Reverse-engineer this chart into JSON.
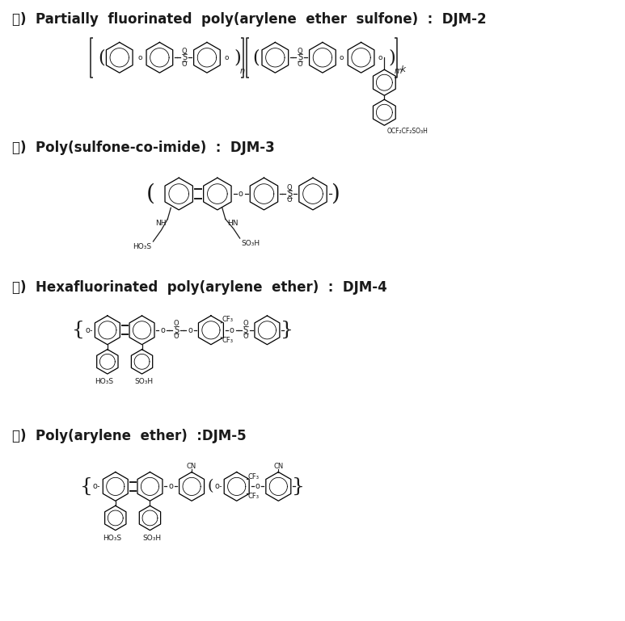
{
  "title_a": "가)  Partially  fluorinated  poly(arylene  ether  sulfone)  :  DJM-2",
  "title_b": "나)  Poly(sulfone-co-imide)  :  DJM-3",
  "title_c": "다)  Hexafluorinated  poly(arylene  ether)  :  DJM-4",
  "title_d": "라)  Poly(arylene  ether)  :DJM-5",
  "bg_color": "#ffffff",
  "text_color": "#1a1a1a",
  "line_color": "#1a1a1a",
  "title_fontsize": 12,
  "fig_width": 7.73,
  "fig_height": 7.69
}
